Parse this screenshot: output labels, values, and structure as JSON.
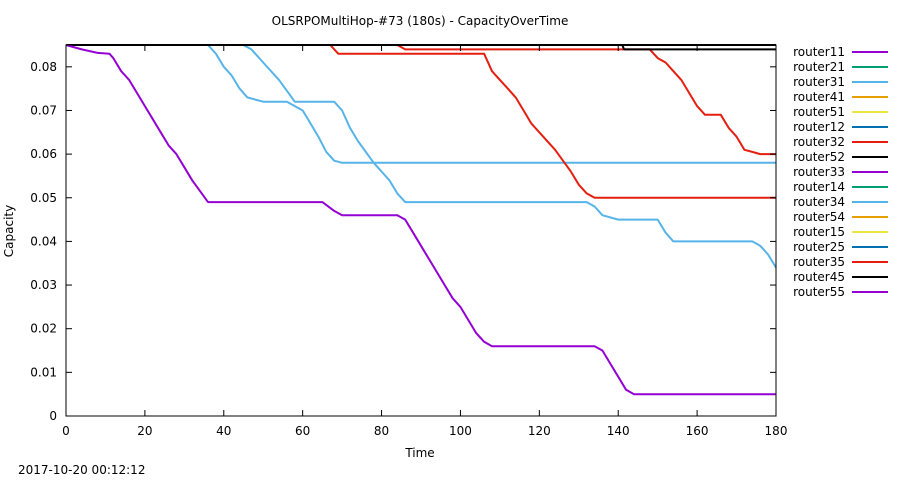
{
  "chart_data": {
    "type": "line",
    "title": "OLSRPOMultiHop-#73 (180s)  -  CapacityOverTime",
    "xlabel": "Time",
    "ylabel": "Capacity",
    "xlim": [
      0,
      180
    ],
    "ylim": [
      0,
      0.085
    ],
    "xticks": [
      0,
      20,
      40,
      60,
      80,
      100,
      120,
      140,
      160,
      180
    ],
    "yticks": [
      0,
      0.01,
      0.02,
      0.03,
      0.04,
      0.05,
      0.06,
      0.07,
      0.08
    ],
    "ytick_labels": [
      "0",
      "0.01",
      "0.02",
      "0.03",
      "0.04",
      "0.05",
      "0.06",
      "0.07",
      "0.08"
    ],
    "grid": false,
    "legend_position": "outside-right",
    "series": [
      {
        "name": "router11",
        "color": "#9400d3",
        "x": [
          0,
          180
        ],
        "y": [
          0.085,
          0.085
        ]
      },
      {
        "name": "router21",
        "color": "#009e73",
        "x": [
          0,
          180
        ],
        "y": [
          0.085,
          0.085
        ]
      },
      {
        "name": "router31",
        "color": "#56b4e9",
        "x": [
          0,
          36,
          38,
          40,
          42,
          44,
          46,
          48,
          50,
          56,
          60,
          62,
          64,
          66,
          68,
          70,
          180
        ],
        "y": [
          0.085,
          0.085,
          0.083,
          0.08,
          0.078,
          0.075,
          0.073,
          0.0725,
          0.072,
          0.072,
          0.07,
          0.067,
          0.064,
          0.0605,
          0.0585,
          0.058,
          0.058
        ]
      },
      {
        "name": "router41",
        "color": "#e69f00",
        "x": [
          0,
          180
        ],
        "y": [
          0.085,
          0.085
        ]
      },
      {
        "name": "router51",
        "color": "#f0e442",
        "x": [
          0,
          180
        ],
        "y": [
          0.085,
          0.085
        ]
      },
      {
        "name": "router12",
        "color": "#0072b2",
        "x": [
          0,
          180
        ],
        "y": [
          0.085,
          0.085
        ]
      },
      {
        "name": "router32",
        "color": "#e51e10",
        "x": [
          0,
          84,
          86,
          148,
          150,
          152,
          154,
          156,
          158,
          160,
          162,
          166,
          168,
          170,
          172,
          174,
          176,
          180
        ],
        "y": [
          0.085,
          0.085,
          0.084,
          0.084,
          0.082,
          0.081,
          0.079,
          0.077,
          0.074,
          0.071,
          0.069,
          0.069,
          0.066,
          0.064,
          0.061,
          0.0605,
          0.06,
          0.06
        ]
      },
      {
        "name": "router52",
        "color": "#000000",
        "x": [
          0,
          141,
          141.5,
          180
        ],
        "y": [
          0.085,
          0.085,
          0.084,
          0.084
        ]
      },
      {
        "name": "router33",
        "color": "#9400d3",
        "x": [
          0,
          180
        ],
        "y": [
          0.085,
          0.085
        ]
      },
      {
        "name": "router14",
        "color": "#009e73",
        "x": [
          0,
          180
        ],
        "y": [
          0.085,
          0.085
        ]
      },
      {
        "name": "router34",
        "color": "#56b4e9",
        "x": [
          0,
          45,
          47,
          50,
          54,
          58,
          62,
          66,
          68,
          70,
          72,
          74,
          78,
          82,
          84,
          86,
          132,
          134,
          136,
          140,
          150,
          152,
          154,
          170,
          174,
          176,
          178,
          180
        ],
        "y": [
          0.085,
          0.085,
          0.084,
          0.081,
          0.077,
          0.072,
          0.072,
          0.072,
          0.072,
          0.07,
          0.066,
          0.063,
          0.058,
          0.054,
          0.051,
          0.049,
          0.049,
          0.048,
          0.046,
          0.045,
          0.045,
          0.042,
          0.04,
          0.04,
          0.04,
          0.039,
          0.037,
          0.034
        ]
      },
      {
        "name": "router54",
        "color": "#e69f00",
        "x": [
          0,
          180
        ],
        "y": [
          0.085,
          0.085
        ]
      },
      {
        "name": "router15",
        "color": "#f0e442",
        "x": [
          0,
          180
        ],
        "y": [
          0.085,
          0.085
        ]
      },
      {
        "name": "router25",
        "color": "#0072b2",
        "x": [
          0,
          180
        ],
        "y": [
          0.085,
          0.085
        ]
      },
      {
        "name": "router35",
        "color": "#e51e10",
        "x": [
          0,
          67,
          69,
          106,
          108,
          110,
          112,
          114,
          116,
          118,
          120,
          124,
          128,
          130,
          132,
          134,
          180
        ],
        "y": [
          0.085,
          0.085,
          0.083,
          0.083,
          0.079,
          0.077,
          0.075,
          0.073,
          0.07,
          0.067,
          0.065,
          0.061,
          0.056,
          0.053,
          0.051,
          0.05,
          0.05
        ]
      },
      {
        "name": "router45",
        "color": "#000000",
        "x": [
          0,
          180
        ],
        "y": [
          0.085,
          0.085
        ]
      },
      {
        "name": "router55",
        "color": "#9400d3",
        "x": [
          0,
          4,
          8,
          11,
          12,
          14,
          16,
          18,
          20,
          22,
          24,
          26,
          28,
          30,
          32,
          34,
          36,
          37,
          60,
          65,
          68,
          70,
          84,
          86,
          88,
          90,
          92,
          94,
          96,
          98,
          100,
          102,
          104,
          106,
          108,
          134,
          136,
          138,
          140,
          142,
          144,
          180
        ],
        "y": [
          0.085,
          0.084,
          0.0832,
          0.083,
          0.082,
          0.079,
          0.077,
          0.074,
          0.071,
          0.068,
          0.065,
          0.062,
          0.06,
          0.057,
          0.054,
          0.0515,
          0.049,
          0.049,
          0.049,
          0.049,
          0.047,
          0.046,
          0.046,
          0.045,
          0.042,
          0.039,
          0.036,
          0.033,
          0.03,
          0.027,
          0.025,
          0.022,
          0.019,
          0.017,
          0.016,
          0.016,
          0.015,
          0.012,
          0.009,
          0.006,
          0.005,
          0.005
        ]
      }
    ]
  },
  "footer": {
    "timestamp": "2017-10-20 00:12:12"
  }
}
